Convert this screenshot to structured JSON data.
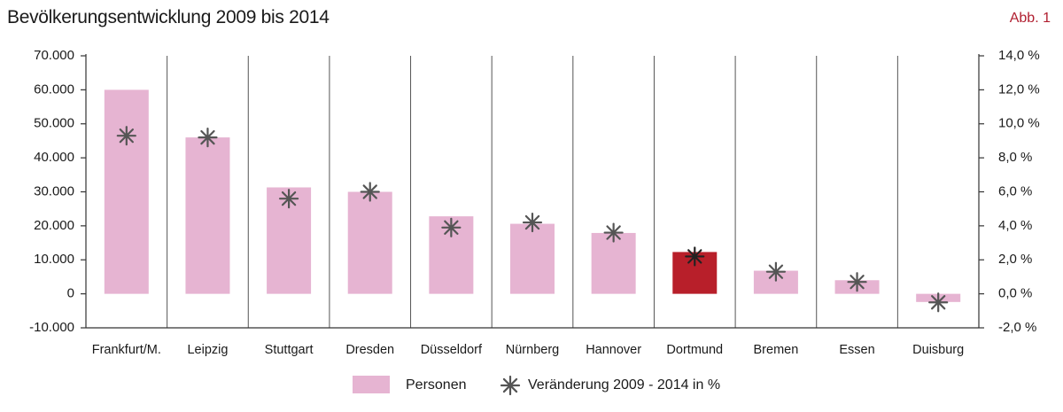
{
  "header": {
    "title": "Bevölkerungsentwicklung 2009 bis 2014",
    "figure_label": "Abb. 1"
  },
  "chart_data": {
    "type": "bar",
    "title": "Bevölkerungsentwicklung 2009 bis 2014",
    "categories": [
      "Frankfurt/M.",
      "Leipzig",
      "Stuttgart",
      "Dresden",
      "Düsseldorf",
      "Nürnberg",
      "Hannover",
      "Dortmund",
      "Bremen",
      "Essen",
      "Duisburg"
    ],
    "series": [
      {
        "name": "Personen",
        "axis": "left",
        "kind": "bar",
        "values": [
          60000,
          46000,
          31300,
          30000,
          22800,
          20600,
          17900,
          12300,
          6800,
          4000,
          -2400
        ],
        "color": "#e6b4d2",
        "highlight": {
          "category": "Dortmund",
          "color": "#b81f2a"
        }
      },
      {
        "name": "Veränderung 2009 - 2014 in %",
        "axis": "right",
        "kind": "marker",
        "values": [
          9.3,
          9.2,
          5.6,
          6.0,
          3.9,
          4.2,
          3.6,
          2.2,
          1.3,
          0.7,
          -0.5
        ],
        "color": "#555555"
      }
    ],
    "y_left": {
      "ylim": [
        -10000,
        70000
      ],
      "ticks": [
        70000,
        60000,
        50000,
        40000,
        30000,
        20000,
        10000,
        0,
        -10000
      ],
      "tick_labels": [
        "70.000",
        "60.000",
        "50.000",
        "40.000",
        "30.000",
        "20.000",
        "10.000",
        "0",
        "-10.000"
      ]
    },
    "y_right": {
      "ylim": [
        -2.0,
        14.0
      ],
      "ticks": [
        14,
        12,
        10,
        8,
        6,
        4,
        2,
        0,
        -2
      ],
      "tick_labels": [
        "14,0 %",
        "12,0 %",
        "10,0 %",
        "8,0 %",
        "6,0 %",
        "4,0 %",
        "2,0 %",
        "0,0 %",
        "-2,0 %"
      ]
    },
    "grid": "vertical",
    "legend": "bottom-center"
  }
}
